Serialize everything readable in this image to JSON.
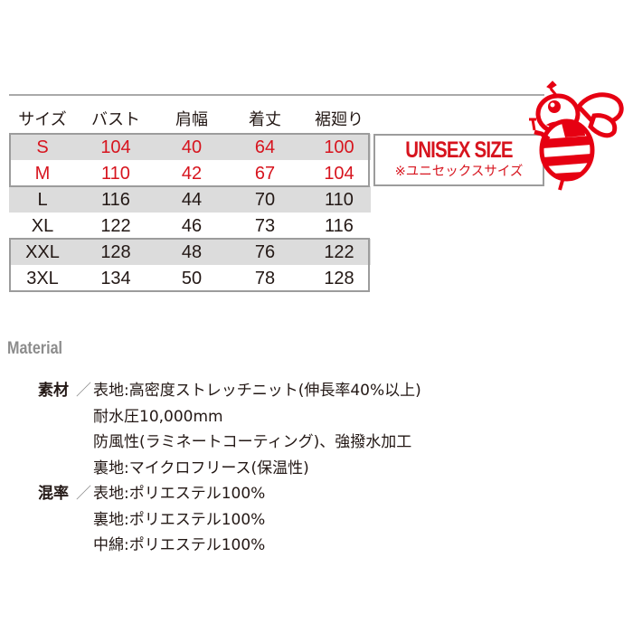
{
  "size_table": {
    "headers": [
      "サイズ",
      "バスト",
      "肩幅",
      "着丈",
      "裾廻り"
    ],
    "rows": [
      [
        "S",
        "104",
        "40",
        "64",
        "100"
      ],
      [
        "M",
        "110",
        "42",
        "67",
        "104"
      ],
      [
        "L",
        "116",
        "44",
        "70",
        "110"
      ],
      [
        "XL",
        "122",
        "46",
        "73",
        "116"
      ],
      [
        "XXL",
        "128",
        "48",
        "76",
        "122"
      ],
      [
        "3XL",
        "134",
        "50",
        "78",
        "128"
      ]
    ]
  },
  "unisex": {
    "title": "UNISEX SIZE",
    "subtitle": "※ユニセックスサイズ"
  },
  "material": {
    "title": "Material",
    "groups": [
      {
        "label": "素材",
        "lines": [
          "表地:高密度ストレッチニット(伸長率40%以上)",
          "耐水圧10,000mm",
          "防風性(ラミネートコーティング)、強撥水加工",
          "裏地:マイクロフリース(保温性)"
        ]
      },
      {
        "label": "混率",
        "lines": [
          "表地:ポリエステル100%",
          "裏地:ポリエステル100%",
          "中綿:ポリエステル100%"
        ]
      }
    ],
    "separator": "／"
  },
  "colors": {
    "accent": "#d7141e",
    "row_gray": "#dcdcdc",
    "border": "#9c9c9c",
    "title_gray": "#8c8c8c"
  },
  "mascot": "bee-mascot"
}
